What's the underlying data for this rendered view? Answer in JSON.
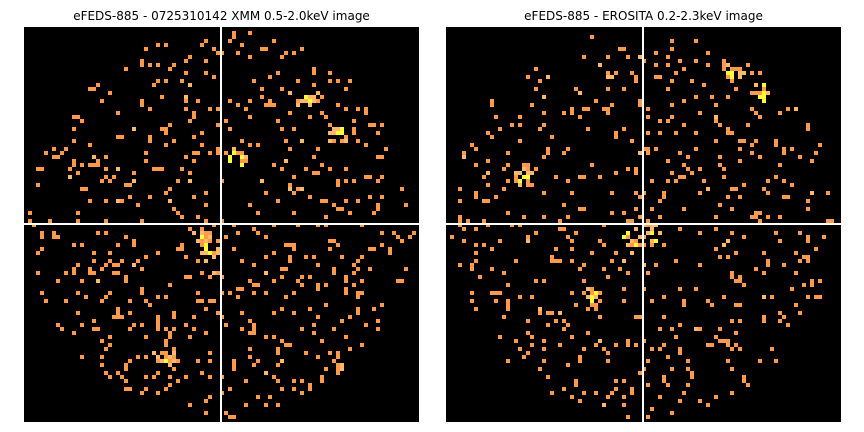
{
  "panels": [
    {
      "title": "eFEDS-885 - 0725310142 XMM 0.5-2.0keV image",
      "seed": 885,
      "counts": 620,
      "hotspots": [
        [
          0.72,
          0.18
        ],
        [
          0.8,
          0.27
        ],
        [
          0.55,
          0.33
        ],
        [
          0.45,
          0.52
        ],
        [
          0.47,
          0.57
        ],
        [
          0.36,
          0.84
        ]
      ]
    },
    {
      "title": "eFEDS-885 -  EROSITA 0.2-2.3keV image",
      "seed": 142,
      "counts": 560,
      "hotspots": [
        [
          0.72,
          0.12
        ],
        [
          0.8,
          0.17
        ],
        [
          0.47,
          0.54
        ],
        [
          0.52,
          0.52
        ],
        [
          0.37,
          0.69
        ],
        [
          0.2,
          0.38
        ]
      ]
    }
  ],
  "colors": {
    "background": "#000000",
    "pixel_low": "#ff9a4d",
    "pixel_mid": "#ffb96a",
    "pixel_high": "#ffff33",
    "crosshair": "#ffffff"
  }
}
